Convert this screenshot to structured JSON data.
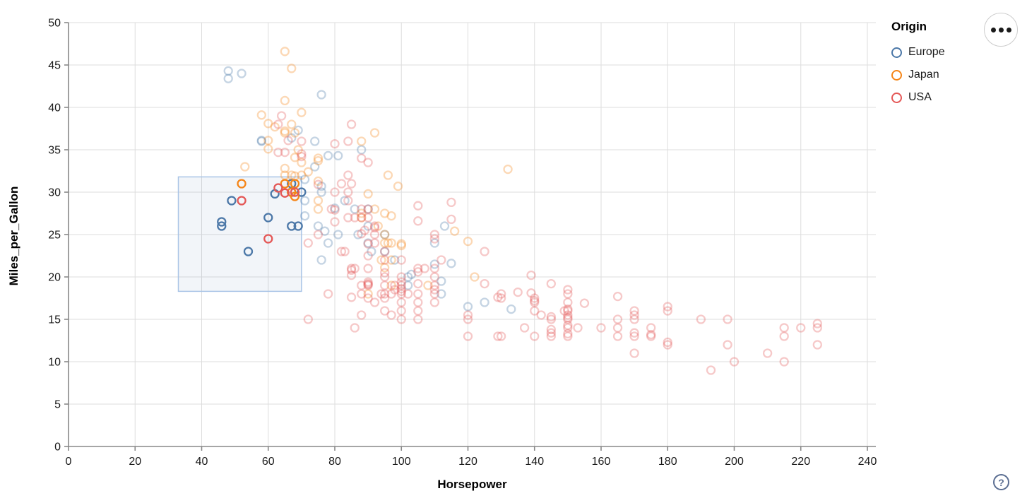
{
  "controls": {
    "menu_icon": "more-options-ellipsis",
    "help_label": "?"
  },
  "chart_data": {
    "type": "scatter",
    "title": "",
    "xlabel": "Horsepower",
    "ylabel": "Miles_per_Gallon",
    "xlim": [
      0,
      240
    ],
    "ylim": [
      0,
      50
    ],
    "x_ticks": [
      0,
      20,
      40,
      60,
      80,
      100,
      120,
      140,
      160,
      180,
      200,
      220,
      240
    ],
    "y_ticks": [
      0,
      5,
      10,
      15,
      20,
      25,
      30,
      35,
      40,
      45,
      50
    ],
    "grid": true,
    "point_shape": "open-circle",
    "unselected_opacity": 0.32,
    "colors": {
      "grid": "#dddddd",
      "axis": "#888888",
      "label": "#1a1a1a",
      "brush_fill": "#4c78a8",
      "brush_stroke": "#a9c4e6"
    },
    "brush": {
      "x": [
        33,
        70
      ],
      "y": [
        18.3,
        31.8
      ]
    },
    "legend": {
      "title": "Origin",
      "position": "top-right",
      "entries": [
        {
          "label": "Europe",
          "color": "#4c78a8"
        },
        {
          "label": "Japan",
          "color": "#f58518"
        },
        {
          "label": "USA",
          "color": "#e45756"
        }
      ]
    },
    "series": [
      {
        "name": "Europe",
        "color": "#4c78a8",
        "points": [
          [
            46,
            26
          ],
          [
            87,
            25
          ],
          [
            90,
            24
          ],
          [
            95,
            25
          ],
          [
            113,
            26
          ],
          [
            60,
            27
          ],
          [
            76,
            30
          ],
          [
            54,
            23
          ],
          [
            112,
            18
          ],
          [
            112,
            19.5
          ],
          [
            102,
            19
          ],
          [
            83,
            29
          ],
          [
            67,
            26
          ],
          [
            78,
            24
          ],
          [
            69,
            26
          ],
          [
            70,
            30
          ],
          [
            49,
            29
          ],
          [
            46,
            26.5
          ],
          [
            90,
            26
          ],
          [
            110,
            24
          ],
          [
            95,
            23
          ],
          [
            91,
            23
          ],
          [
            75,
            26
          ],
          [
            67,
            31
          ],
          [
            76,
            22
          ],
          [
            102,
            20
          ],
          [
            98,
            22
          ],
          [
            125,
            17
          ],
          [
            120,
            16.5
          ],
          [
            133,
            16.2
          ],
          [
            115,
            21.6
          ],
          [
            110,
            21.5
          ],
          [
            71,
            31.5
          ],
          [
            103,
            20.3
          ],
          [
            78,
            34.3
          ],
          [
            58,
            36
          ],
          [
            77,
            25.4
          ],
          [
            67,
            30
          ],
          [
            48,
            43.4
          ],
          [
            48,
            44.3
          ],
          [
            76,
            41.5
          ],
          [
            52,
            44
          ],
          [
            74,
            36
          ],
          [
            74,
            33
          ],
          [
            58,
            36.1
          ],
          [
            81,
            34.3
          ],
          [
            80,
            28.1
          ],
          [
            88,
            35
          ],
          [
            69,
            37.3
          ],
          [
            86,
            28
          ],
          [
            81,
            25
          ],
          [
            90,
            28
          ],
          [
            67,
            36.4
          ],
          [
            62,
            29.8
          ],
          [
            71,
            29
          ],
          [
            76,
            30.7
          ],
          [
            71,
            27.2
          ]
        ]
      },
      {
        "name": "Japan",
        "color": "#f58518",
        "points": [
          [
            95,
            24
          ],
          [
            88,
            27
          ],
          [
            88,
            27.5
          ],
          [
            52,
            31
          ],
          [
            65,
            31
          ],
          [
            65,
            32
          ],
          [
            69,
            35
          ],
          [
            95,
            25
          ],
          [
            97,
            19
          ],
          [
            92,
            28
          ],
          [
            90,
            18
          ],
          [
            94,
            22
          ],
          [
            122,
            20
          ],
          [
            96,
            24
          ],
          [
            97,
            24
          ],
          [
            53,
            33
          ],
          [
            75,
            29
          ],
          [
            70,
            32
          ],
          [
            75,
            28
          ],
          [
            93,
            26
          ],
          [
            108,
            19
          ],
          [
            68,
            31.9
          ],
          [
            67,
            30
          ],
          [
            70,
            33.5
          ],
          [
            95,
            21.1
          ],
          [
            97,
            22
          ],
          [
            60,
            36.1
          ],
          [
            68,
            29.5
          ],
          [
            70,
            39.4
          ],
          [
            65,
            32.8
          ],
          [
            95,
            27.5
          ],
          [
            97,
            27.2
          ],
          [
            75,
            31.3
          ],
          [
            100,
            23.9
          ],
          [
            132,
            32.7
          ],
          [
            100,
            23.7
          ],
          [
            58,
            39.1
          ],
          [
            75,
            33.7
          ],
          [
            62,
            37.7
          ],
          [
            68,
            34.1
          ],
          [
            60,
            35.1
          ],
          [
            65,
            37
          ],
          [
            116,
            25.4
          ],
          [
            120,
            24.2
          ],
          [
            68,
            37
          ],
          [
            68,
            31
          ],
          [
            72,
            32.4
          ],
          [
            96,
            32
          ],
          [
            67,
            38
          ],
          [
            75,
            34
          ],
          [
            67,
            32
          ],
          [
            67,
            44.6
          ],
          [
            65,
            46.6
          ],
          [
            92,
            37
          ],
          [
            60,
            38.1
          ],
          [
            65,
            37.2
          ],
          [
            90,
            29.8
          ],
          [
            65,
            40.8
          ],
          [
            88,
            36
          ],
          [
            99,
            30.7
          ]
        ]
      },
      {
        "name": "USA",
        "color": "#e45756",
        "points": [
          [
            130,
            18
          ],
          [
            165,
            15
          ],
          [
            150,
            18
          ],
          [
            150,
            16
          ],
          [
            140,
            17
          ],
          [
            198,
            15
          ],
          [
            220,
            14
          ],
          [
            215,
            14
          ],
          [
            225,
            14
          ],
          [
            190,
            15
          ],
          [
            170,
            15
          ],
          [
            160,
            14
          ],
          [
            150,
            15
          ],
          [
            225,
            14.5
          ],
          [
            95,
            22
          ],
          [
            97,
            18
          ],
          [
            85,
            21
          ],
          [
            90,
            21
          ],
          [
            215,
            10
          ],
          [
            200,
            10
          ],
          [
            210,
            11
          ],
          [
            193,
            9
          ],
          [
            105,
            16
          ],
          [
            100,
            17
          ],
          [
            88,
            19
          ],
          [
            110,
            18
          ],
          [
            165,
            14
          ],
          [
            175,
            14
          ],
          [
            153,
            14
          ],
          [
            150,
            14
          ],
          [
            180,
            12
          ],
          [
            170,
            11
          ],
          [
            175,
            13
          ],
          [
            145,
            13
          ],
          [
            110,
            17
          ],
          [
            86,
            21
          ],
          [
            100,
            18
          ],
          [
            165,
            13
          ],
          [
            120,
            13
          ],
          [
            140,
            13
          ],
          [
            170,
            13
          ],
          [
            198,
            12
          ],
          [
            215,
            13
          ],
          [
            225,
            12
          ],
          [
            180,
            12.3
          ],
          [
            150,
            17
          ],
          [
            150,
            14.3
          ],
          [
            145,
            13.4
          ],
          [
            150,
            15.2
          ],
          [
            137,
            14
          ],
          [
            100,
            16
          ],
          [
            105,
            18
          ],
          [
            88,
            18
          ],
          [
            90,
            19
          ],
          [
            100,
            18.3
          ],
          [
            175,
            13.2
          ],
          [
            170,
            13.4
          ],
          [
            120,
            15
          ],
          [
            107,
            21
          ],
          [
            100,
            19
          ],
          [
            105,
            17
          ],
          [
            95,
            20
          ],
          [
            150,
            13
          ],
          [
            145,
            15
          ],
          [
            140,
            16
          ],
          [
            72,
            24
          ],
          [
            95,
            23
          ],
          [
            75,
            25
          ],
          [
            80,
            26.5
          ],
          [
            129,
            13
          ],
          [
            110,
            20
          ],
          [
            95,
            18
          ],
          [
            110,
            18.5
          ],
          [
            90,
            19.2
          ],
          [
            145,
            15.3
          ],
          [
            150,
            16.2
          ],
          [
            170,
            16
          ],
          [
            110,
            21
          ],
          [
            83,
            23
          ],
          [
            52,
            29
          ],
          [
            100,
            18.6
          ],
          [
            150,
            15.5
          ],
          [
            180,
            16.5
          ],
          [
            149,
            16
          ],
          [
            145,
            13.8
          ],
          [
            130,
            13
          ],
          [
            150,
            13.3
          ],
          [
            140,
            17.2
          ],
          [
            120,
            15.5
          ],
          [
            89,
            25.5
          ],
          [
            92,
            25
          ],
          [
            90,
            22.5
          ],
          [
            105,
            20.6
          ],
          [
            95,
            17.5
          ],
          [
            78,
            18
          ],
          [
            110,
            24.5
          ],
          [
            63,
            30.5
          ],
          [
            90,
            19.1
          ],
          [
            100,
            19.4
          ],
          [
            98,
            18.5
          ],
          [
            170,
            15.5
          ],
          [
            180,
            16
          ],
          [
            80,
            30
          ],
          [
            105,
            19.2
          ],
          [
            95,
            20.5
          ],
          [
            139,
            20.2
          ],
          [
            139,
            18.1
          ],
          [
            140,
            17.5
          ],
          [
            165,
            17.7
          ],
          [
            145,
            19.2
          ],
          [
            85,
            20.8
          ],
          [
            88,
            25.1
          ],
          [
            85,
            20.2
          ],
          [
            90,
            19.4
          ],
          [
            75,
            30.9
          ],
          [
            66,
            36.1
          ],
          [
            80,
            27.9
          ],
          [
            130,
            17.5
          ],
          [
            129,
            17.6
          ],
          [
            142,
            15.5
          ],
          [
            125,
            19.2
          ],
          [
            150,
            18.5
          ],
          [
            135,
            18.2
          ],
          [
            155,
            16.9
          ],
          [
            90,
            23.9
          ],
          [
            115,
            26.8
          ],
          [
            105,
            28.4
          ],
          [
            115,
            28.8
          ],
          [
            70,
            34.2
          ],
          [
            70,
            34.5
          ],
          [
            125,
            23
          ],
          [
            85,
            17.6
          ],
          [
            90,
            28
          ],
          [
            68,
            30
          ],
          [
            80,
            35.7
          ],
          [
            60,
            24.5
          ],
          [
            72,
            15
          ],
          [
            90,
            33.5
          ],
          [
            63,
            38
          ],
          [
            64,
            39
          ],
          [
            65,
            34.7
          ],
          [
            65,
            29.9
          ],
          [
            63,
            34.7
          ],
          [
            92,
            25.8
          ],
          [
            110,
            25
          ],
          [
            105,
            26.6
          ],
          [
            112,
            22
          ],
          [
            84,
            27
          ],
          [
            84,
            30
          ],
          [
            88,
            28
          ],
          [
            88,
            27
          ],
          [
            88,
            34
          ],
          [
            85,
            31
          ],
          [
            84,
            29
          ],
          [
            92,
            24
          ],
          [
            84,
            36
          ],
          [
            86,
            27
          ],
          [
            90,
            27
          ],
          [
            92,
            26
          ],
          [
            82,
            23
          ],
          [
            79,
            28
          ],
          [
            84,
            32
          ],
          [
            82,
            31
          ],
          [
            70,
            36
          ],
          [
            85,
            38
          ],
          [
            105,
            15
          ],
          [
            100,
            15
          ],
          [
            97,
            15.5
          ],
          [
            95,
            16
          ],
          [
            88,
            15.5
          ],
          [
            86,
            14
          ],
          [
            92,
            17
          ],
          [
            94,
            18
          ],
          [
            90,
            17.5
          ],
          [
            98,
            19
          ],
          [
            102,
            18
          ],
          [
            100,
            20
          ],
          [
            95,
            19
          ],
          [
            105,
            21
          ],
          [
            100,
            22
          ],
          [
            110,
            19
          ]
        ]
      }
    ]
  }
}
